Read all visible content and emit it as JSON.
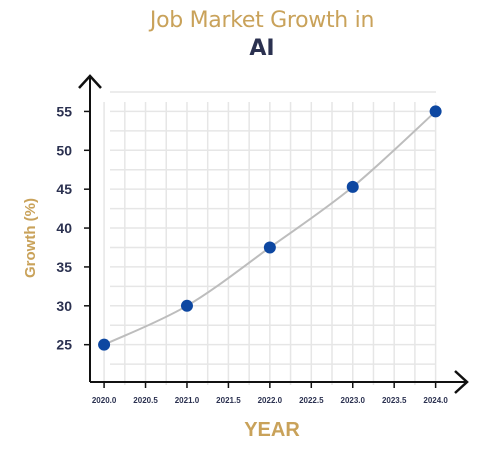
{
  "chart_data": {
    "type": "line",
    "title_line1": "Job Market Growth in",
    "title_line2": "AI",
    "xlabel": "YEAR",
    "ylabel": "Growth (%)",
    "x": [
      2020.0,
      2021.0,
      2022.0,
      2023.0,
      2024.0
    ],
    "series": [
      {
        "values": [
          25,
          30,
          37.5,
          45.3,
          55
        ]
      }
    ],
    "xticks": [
      2020.0,
      2020.5,
      2021.0,
      2021.5,
      2022.0,
      2022.5,
      2023.0,
      2023.5,
      2024.0
    ],
    "xtick_labels": [
      "2020.0",
      "2020.5",
      "2021.0",
      "2021.5",
      "2022.0",
      "2022.5",
      "2023.0",
      "2023.5",
      "2024.0"
    ],
    "yticks": [
      25,
      30,
      35,
      40,
      45,
      50,
      55
    ],
    "ytick_labels": [
      "25",
      "30",
      "35",
      "40",
      "45",
      "50",
      "55"
    ],
    "xlim": [
      2019.83,
      2024.27
    ],
    "ylim": [
      20.2,
      58.4
    ],
    "grid": true,
    "legend": "none",
    "colors": {
      "marker": "#0d47a1",
      "line": "#bdbdbd",
      "title_accent": "#c9a25a",
      "title_dark": "#2b3150",
      "axis": "#111111",
      "tick_text": "#2b3150",
      "grid": "#e6e6e6"
    }
  }
}
